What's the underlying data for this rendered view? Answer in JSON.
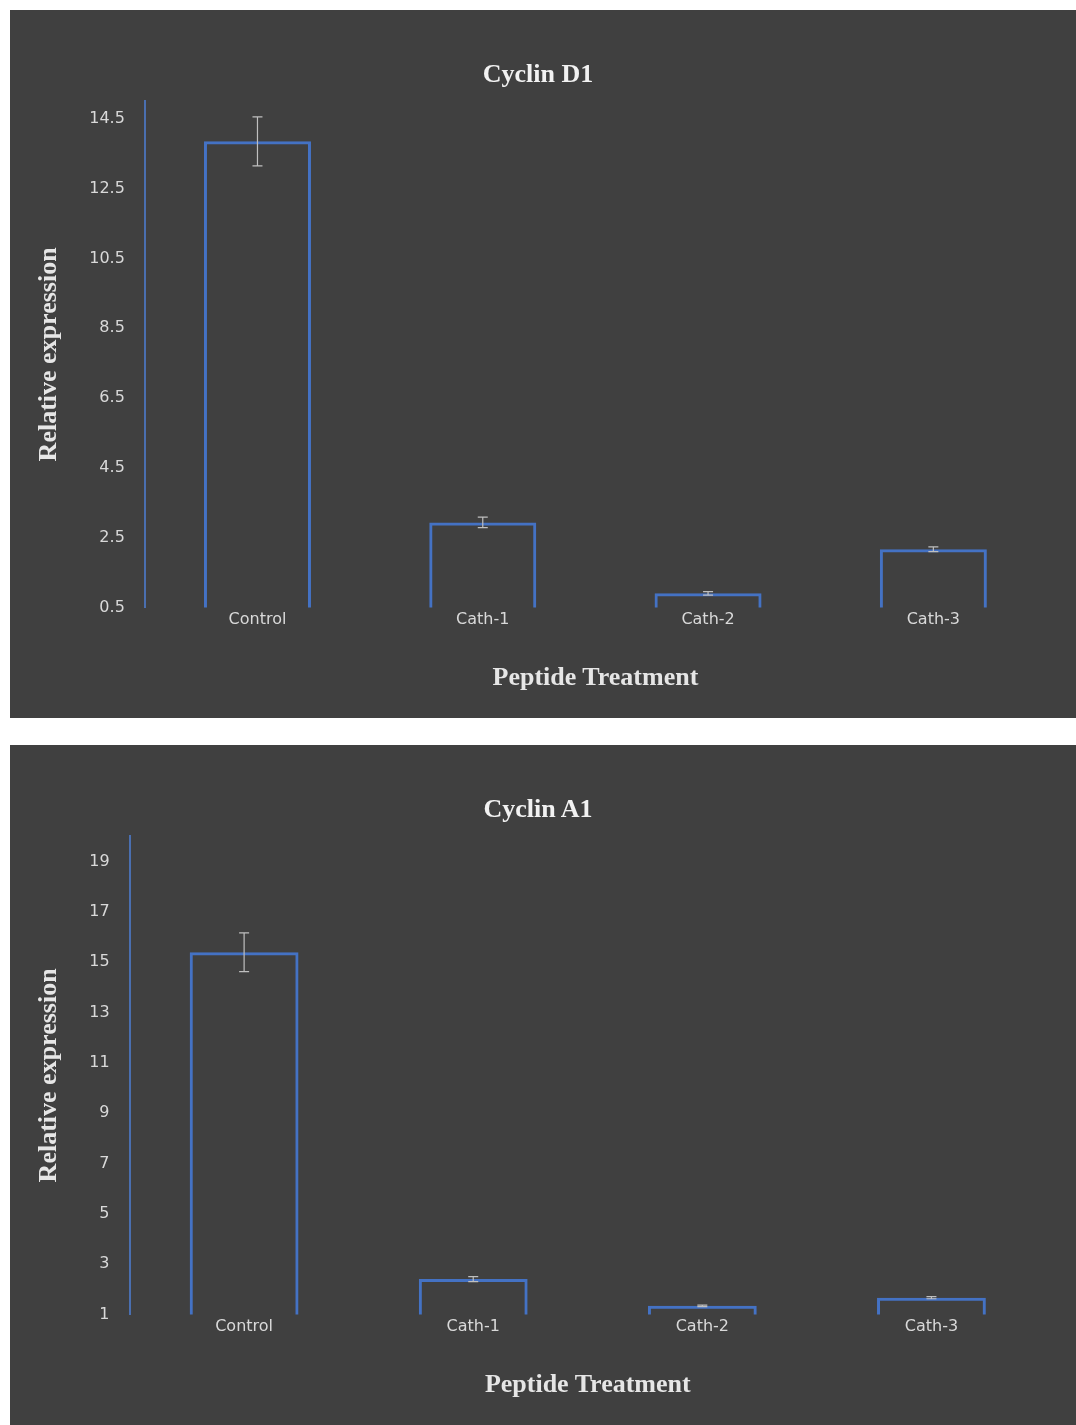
{
  "chart_data": [
    {
      "type": "bar",
      "title": "Cyclin D1",
      "xlabel": "Peptide Treatment",
      "ylabel": "Relative expression",
      "categories": [
        "Control",
        "Cath-1",
        "Cath-2",
        "Cath-3"
      ],
      "values": [
        13.85,
        2.94,
        0.91,
        2.17
      ],
      "errors": [
        0.7,
        0.15,
        0.05,
        0.07
      ],
      "color": "#4472c4",
      "ylim": [
        0.5,
        15
      ],
      "yticks": [
        0.5,
        2.5,
        4.5,
        6.5,
        8.5,
        10.5,
        12.5,
        14.5
      ],
      "grid": false
    },
    {
      "type": "bar",
      "title": "Cyclin A1",
      "xlabel": "Peptide Treatment",
      "ylabel": "Relative expression",
      "categories": [
        "Control",
        "Cath-1",
        "Cath-2",
        "Cath-3"
      ],
      "values": [
        15.39,
        2.41,
        1.35,
        1.67
      ],
      "errors": [
        0.77,
        0.1,
        0.03,
        0.04
      ],
      "color": "#4472c4",
      "ylim": [
        1,
        20
      ],
      "yticks": [
        1,
        3,
        5,
        7,
        9,
        11,
        13,
        15,
        17,
        19
      ],
      "grid": false
    }
  ]
}
